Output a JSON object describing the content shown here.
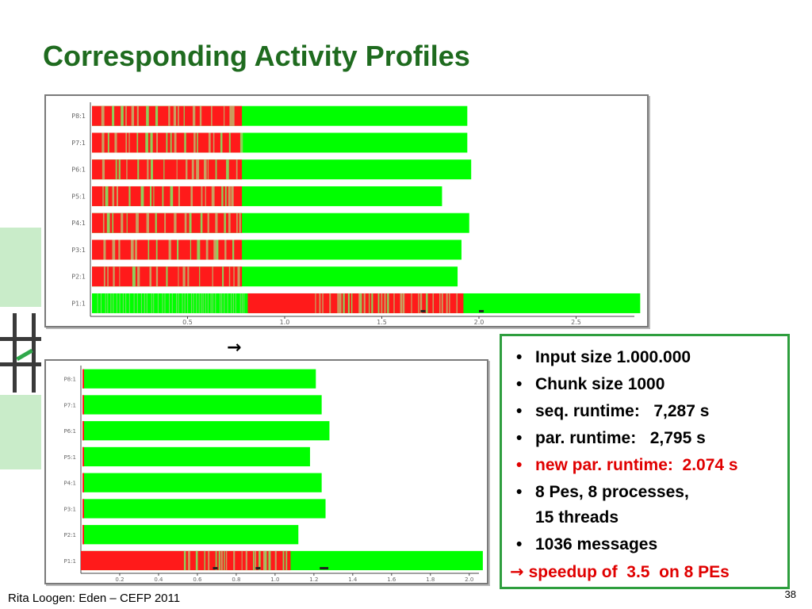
{
  "slide": {
    "title": "Corresponding Activity Profiles",
    "arrow_symbol": "→",
    "footer": "Rita Loogen: Eden – CEFP 2011",
    "page_number": "38"
  },
  "colors": {
    "title": "#1f6b1f",
    "running": "#00ff00",
    "blocked": "#ff1a1a",
    "idle": "#c8a060",
    "accent_red": "#e00000",
    "box_border": "#2e9e3e"
  },
  "bullets": [
    {
      "text": "Input size 1.000.000",
      "color": "black"
    },
    {
      "text": "Chunk size 1000",
      "color": "black"
    },
    {
      "text": "seq. runtime:   7,287 s",
      "color": "black"
    },
    {
      "text": "par. runtime:   2,795 s",
      "color": "black"
    },
    {
      "text": "new par. runtime:  2.074 s",
      "color": "red"
    },
    {
      "text": "8 Pes, 8 processes,",
      "color": "black",
      "continuation": "15 threads"
    },
    {
      "text": "1036 messages",
      "color": "black"
    }
  ],
  "conclusion": {
    "arrow": "→",
    "text": "speedup of  3.5  on 8 PEs"
  },
  "chart_data": [
    {
      "type": "timeline",
      "description_of_states": [
        "running",
        "blocked"
      ],
      "x_ticks": [
        "0.5",
        "1.0",
        "1.5",
        "2.0",
        "2.5"
      ],
      "xlim": [
        0,
        2.8
      ],
      "rows": [
        {
          "label": "P8:1",
          "end": 1.94
        },
        {
          "label": "P7:1",
          "end": 1.94
        },
        {
          "label": "P6:1",
          "end": 1.96
        },
        {
          "label": "P5:1",
          "end": 1.81
        },
        {
          "label": "P4:1",
          "end": 1.95
        },
        {
          "label": "P3:1",
          "end": 1.91
        },
        {
          "label": "P2:1",
          "end": 1.89
        },
        {
          "label": "P1:1",
          "end": 2.83
        }
      ]
    },
    {
      "type": "timeline",
      "description_of_states": [
        "running",
        "blocked"
      ],
      "x_ticks": [
        "0.2",
        "0.4",
        "0.6",
        "0.8",
        "1.0",
        "1.2",
        "1.4",
        "1.6",
        "1.8",
        "2.0"
      ],
      "xlim": [
        0,
        2.05
      ],
      "rows": [
        {
          "label": "P8:1",
          "end": 1.21
        },
        {
          "label": "P7:1",
          "end": 1.24
        },
        {
          "label": "P6:1",
          "end": 1.28
        },
        {
          "label": "P5:1",
          "end": 1.18
        },
        {
          "label": "P4:1",
          "end": 1.24
        },
        {
          "label": "P3:1",
          "end": 1.26
        },
        {
          "label": "P2:1",
          "end": 1.12
        },
        {
          "label": "P1:1",
          "end": 2.07
        }
      ]
    }
  ]
}
